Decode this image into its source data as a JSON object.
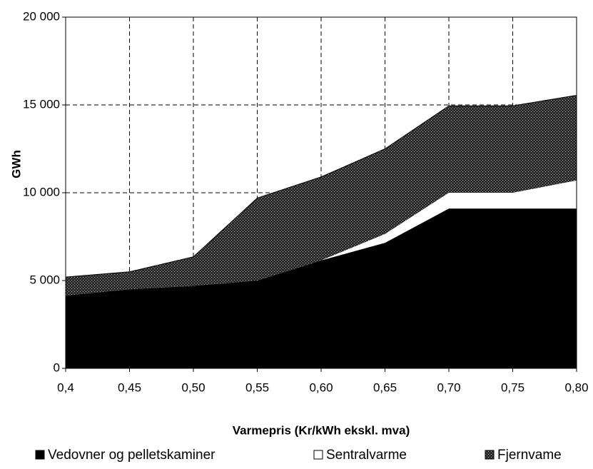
{
  "chart_data": {
    "type": "stacked-area",
    "x_label": "Varmepris (Kr/kWh ekskl. mva)",
    "y_label": "GWh",
    "categories": [
      "0,4",
      "0,45",
      "0,50",
      "0,55",
      "0,60",
      "0,65",
      "0,70",
      "0,75",
      "0,80"
    ],
    "series": [
      {
        "name": "Vedovner og pelletskaminer",
        "color": "#000000",
        "values": [
          4150,
          4500,
          4700,
          5000,
          6150,
          7150,
          9100,
          9100,
          9100
        ]
      },
      {
        "name": "Sentralvarme",
        "color": "#ffffff",
        "values": [
          0,
          0,
          0,
          0,
          0,
          500,
          900,
          900,
          1600
        ]
      },
      {
        "name": "Fjernvame",
        "color": "#2b2b2b",
        "pattern": "dotted",
        "values": [
          1050,
          1000,
          1650,
          4700,
          4750,
          4850,
          4950,
          4950,
          4850
        ]
      }
    ],
    "ylim": [
      0,
      20000
    ],
    "yticks": [
      0,
      {
        "value": 5000,
        "label": "5 000"
      },
      {
        "value": 10000,
        "label": "10 000"
      },
      {
        "value": 15000,
        "label": "15 000"
      },
      {
        "value": 20000,
        "label": "20 000"
      }
    ],
    "grid": true,
    "legend": "bottom"
  }
}
